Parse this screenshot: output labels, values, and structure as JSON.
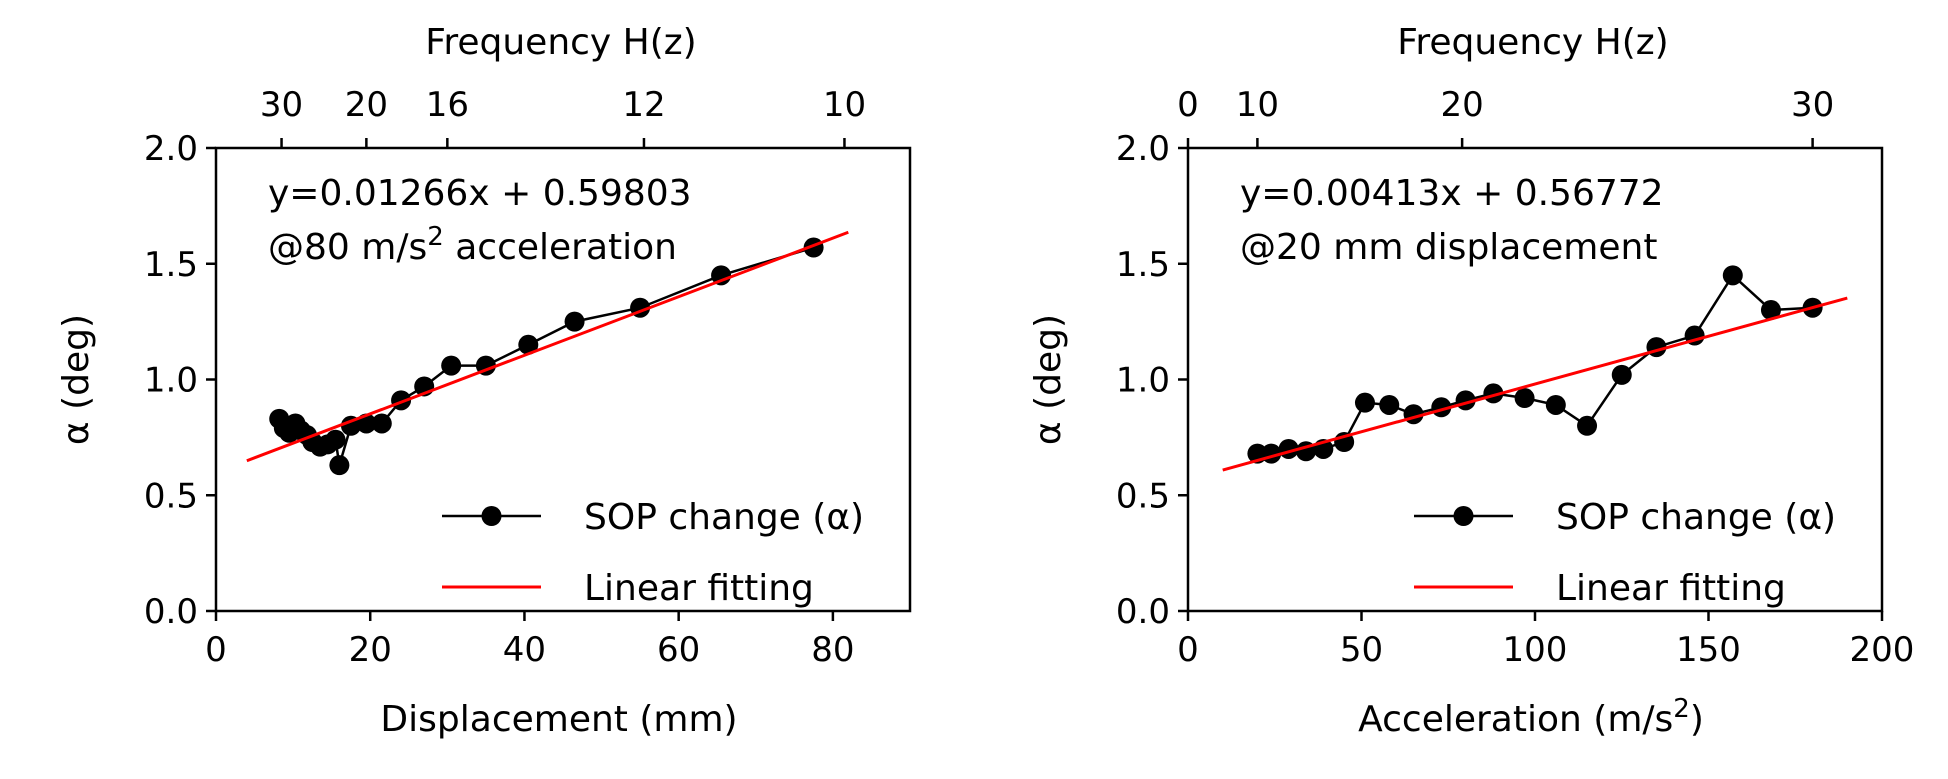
{
  "chart_data": [
    {
      "type": "line",
      "top_xlabel": "Frequency H(z)",
      "top_ticks": [
        "30",
        "20",
        "16",
        "12",
        "10"
      ],
      "xlabel": "Displacement (mm)",
      "ylabel": "α (deg)",
      "xlim": [
        0,
        90
      ],
      "ylim": [
        0,
        2
      ],
      "xticks": [
        0,
        20,
        40,
        60,
        80
      ],
      "yticks": [
        0.0,
        0.5,
        1.0,
        1.5,
        2.0
      ],
      "ytick_labels": [
        "0.0",
        "0.5",
        "1.0",
        "1.5",
        "2.0"
      ],
      "top_tick_x": [
        8.5,
        19.5,
        30,
        55.5,
        81.5
      ],
      "equation": "y=0.01266x + 0.59803",
      "note_prefix": "@80 m/s",
      "note_sup": "2",
      "note_suffix": " acceleration",
      "series": [
        {
          "name": "SOP change (α)",
          "color": "#000000",
          "x": [
            8.2,
            8.8,
            9.5,
            10.3,
            11.0,
            11.8,
            12.5,
            13.5,
            14.5,
            15.5,
            16.0,
            17.5,
            19.5,
            21.5,
            24.0,
            27.0,
            30.5,
            35.0,
            40.5,
            46.5,
            55.0,
            65.5,
            77.5
          ],
          "y": [
            0.83,
            0.79,
            0.77,
            0.81,
            0.78,
            0.76,
            0.73,
            0.71,
            0.72,
            0.74,
            0.63,
            0.8,
            0.81,
            0.81,
            0.91,
            0.97,
            1.06,
            1.06,
            1.15,
            1.25,
            1.31,
            1.45,
            1.57
          ]
        },
        {
          "name": "Linear fitting",
          "color": "#ff0000",
          "x": [
            4,
            82
          ],
          "y": [
            0.649,
            1.636
          ]
        }
      ]
    },
    {
      "type": "line",
      "top_xlabel": "Frequency H(z)",
      "top_ticks": [
        "0",
        "10",
        "20",
        "30"
      ],
      "xlabel": "Acceleration (m/s",
      "xlabel_sup": "2",
      "xlabel_close": ")",
      "ylabel": "α (deg)",
      "xlim": [
        0,
        200
      ],
      "ylim": [
        0,
        2
      ],
      "xticks": [
        0,
        50,
        100,
        150,
        200
      ],
      "yticks": [
        0.0,
        0.5,
        1.0,
        1.5,
        2.0
      ],
      "ytick_labels": [
        "0.0",
        "0.5",
        "1.0",
        "1.5",
        "2.0"
      ],
      "top_tick_x": [
        0,
        20,
        79,
        180
      ],
      "equation": "y=0.00413x + 0.56772",
      "note_prefix": "@20 mm displacement",
      "note_sup": "",
      "note_suffix": "",
      "series": [
        {
          "name": "SOP change (α)",
          "color": "#000000",
          "x": [
            20,
            24,
            29,
            34,
            39,
            45,
            51,
            58,
            65,
            73,
            80,
            88,
            97,
            106,
            115,
            125,
            135,
            146,
            157,
            168,
            180
          ],
          "y": [
            0.68,
            0.68,
            0.7,
            0.69,
            0.7,
            0.73,
            0.9,
            0.89,
            0.85,
            0.88,
            0.91,
            0.94,
            0.92,
            0.89,
            0.8,
            1.02,
            1.14,
            1.19,
            1.45,
            1.3,
            1.31
          ]
        },
        {
          "name": "Linear fitting",
          "color": "#ff0000",
          "x": [
            10,
            190
          ],
          "y": [
            0.609,
            1.352
          ]
        }
      ]
    }
  ]
}
